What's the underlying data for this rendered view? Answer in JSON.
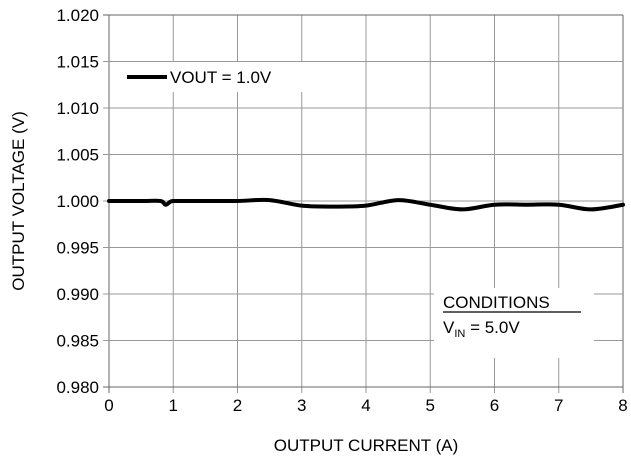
{
  "chart_data": {
    "type": "line",
    "xlabel": "OUTPUT  CURRENT (A)",
    "ylabel": "OUTPUT VOLTAGE (V)",
    "xlim": [
      0,
      8
    ],
    "ylim": [
      0.98,
      1.02
    ],
    "x_ticks": [
      "0",
      "1",
      "2",
      "3",
      "4",
      "5",
      "6",
      "7",
      "8"
    ],
    "y_ticks": [
      "0.980",
      "0.985",
      "0.990",
      "0.995",
      "1.000",
      "1.005",
      "1.010",
      "1.015",
      "1.020"
    ],
    "grid": true,
    "legend_position": "top-left",
    "series": [
      {
        "name": "VOUT = 1.0V",
        "color": "#000000",
        "x": [
          0,
          0.5,
          0.8,
          0.88,
          0.95,
          1.0,
          1.2,
          1.5,
          2.0,
          2.5,
          3.0,
          3.5,
          4.0,
          4.5,
          5.0,
          5.5,
          6.0,
          6.5,
          7.0,
          7.5,
          8.0
        ],
        "y": [
          1.0,
          1.0,
          1.0,
          0.9996,
          0.9999,
          1.0,
          1.0,
          1.0,
          1.0,
          1.0001,
          0.9995,
          0.9994,
          0.9995,
          1.0001,
          0.9996,
          0.9991,
          0.9996,
          0.9996,
          0.9996,
          0.9991,
          0.9996
        ]
      }
    ],
    "annotation": {
      "title": "CONDITIONS",
      "v_main": "V",
      "v_sub": "IN",
      "v_value": " = 5.0V"
    }
  }
}
